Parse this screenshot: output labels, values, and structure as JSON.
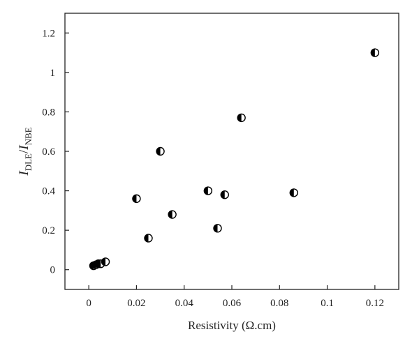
{
  "chart_data": {
    "type": "scatter",
    "title": "",
    "xlabel": "Resistivity (Ω.cm)",
    "ylabel": {
      "main1": "I",
      "sub1": "DLE",
      "sep": "/",
      "main2": "I",
      "sub2": "NBE"
    },
    "xlim": [
      -0.01,
      0.13
    ],
    "ylim": [
      -0.1,
      1.3
    ],
    "x_ticks": [
      0,
      0.02,
      0.04,
      0.06,
      0.08,
      0.1,
      0.12
    ],
    "x_tick_labels": [
      "0",
      "0.02",
      "0.04",
      "0.06",
      "0.08",
      "0.1",
      "0.12"
    ],
    "y_ticks": [
      0,
      0.2,
      0.4,
      0.6,
      0.8,
      1.0,
      1.2
    ],
    "y_tick_labels": [
      "0",
      "0.2",
      "0.4",
      "0.6",
      "0.8",
      "1",
      "1.2"
    ],
    "grid": false,
    "marker": "half-filled-circle",
    "marker_color": "#000000",
    "series": [
      {
        "points": [
          {
            "x": 0.002,
            "y": 0.02
          },
          {
            "x": 0.003,
            "y": 0.025
          },
          {
            "x": 0.004,
            "y": 0.03
          },
          {
            "x": 0.005,
            "y": 0.03
          },
          {
            "x": 0.007,
            "y": 0.04
          },
          {
            "x": 0.02,
            "y": 0.36
          },
          {
            "x": 0.025,
            "y": 0.16
          },
          {
            "x": 0.03,
            "y": 0.6
          },
          {
            "x": 0.035,
            "y": 0.28
          },
          {
            "x": 0.05,
            "y": 0.4
          },
          {
            "x": 0.054,
            "y": 0.21
          },
          {
            "x": 0.057,
            "y": 0.38
          },
          {
            "x": 0.064,
            "y": 0.77
          },
          {
            "x": 0.086,
            "y": 0.39
          },
          {
            "x": 0.12,
            "y": 1.1
          }
        ]
      }
    ]
  }
}
